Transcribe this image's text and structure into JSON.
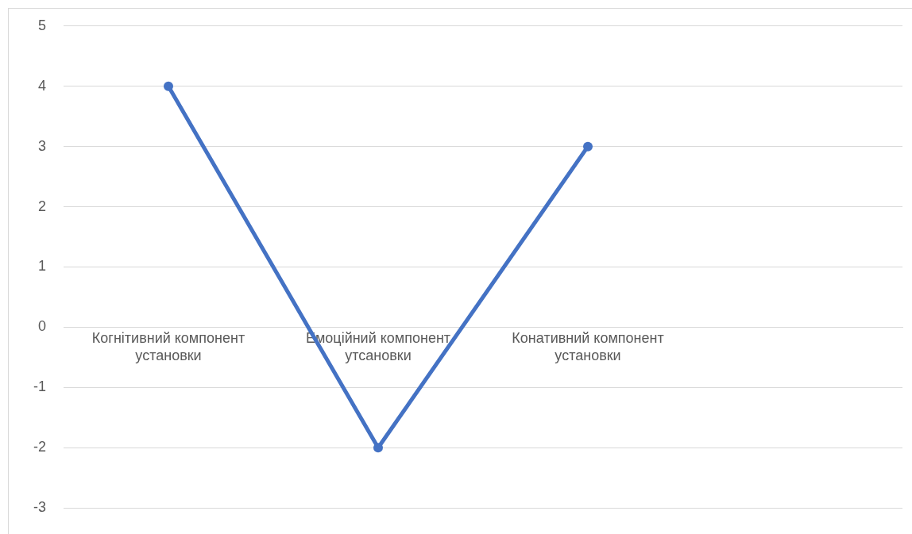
{
  "chart_data": {
    "type": "line",
    "categories": [
      "Когнітивний компонент установки",
      "Емоційний компонент утсановки",
      "Конативний компонент установки",
      null
    ],
    "series": [
      {
        "color": "#4472c4",
        "values": [
          4,
          -2,
          3,
          null
        ]
      }
    ],
    "ylim": [
      -3,
      5
    ],
    "yticks": [
      -3,
      -2,
      -1,
      0,
      1,
      2,
      3,
      4,
      5
    ],
    "grid": "y",
    "legend": false,
    "marker": "circle",
    "line_style": "solid"
  }
}
